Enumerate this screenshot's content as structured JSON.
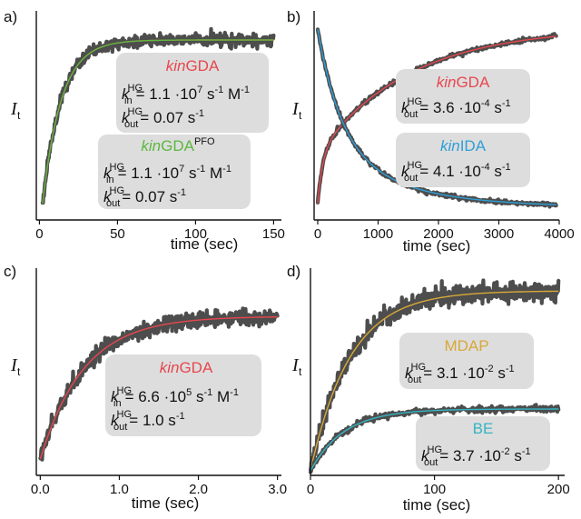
{
  "chart_data": [
    {
      "panel": "a)",
      "type": "line",
      "xlabel": "time  (sec)",
      "ylabel": "I",
      "ylabel_sub": "t",
      "xlim": [
        -2,
        155
      ],
      "xticks": [
        "0",
        "50",
        "100",
        "150"
      ],
      "xtick_values": [
        0,
        50,
        100,
        150
      ],
      "series": [
        {
          "name": "kinGDA",
          "k_in": "1.1 ·10⁷ s⁻¹ M⁻¹",
          "k_out": "0.07 s⁻¹",
          "color": "#e8474e"
        },
        {
          "name": "kinGDA^PFO",
          "k_in": "1.1 ·10⁷ s⁻¹ M⁻¹",
          "k_out": "0.07 s⁻¹",
          "color": "#5cb83f"
        }
      ],
      "model": {
        "x0": 1,
        "tau": 12,
        "ymax": 1.0,
        "xend": 150
      }
    },
    {
      "panel": "b)",
      "type": "line",
      "xlabel": "time (sec)",
      "ylabel": "I",
      "ylabel_sub": "t",
      "xlim": [
        -60,
        4000
      ],
      "xticks": [
        "0",
        "1000",
        "2000",
        "3000",
        "4000"
      ],
      "xtick_values": [
        0,
        1000,
        2000,
        3000,
        4000
      ],
      "series": [
        {
          "name": "kinGDA",
          "k_out": "3.6 ·10⁻⁴ s⁻¹",
          "color": "#e8474e",
          "trend": "rising"
        },
        {
          "name": "kinIDA",
          "k_out": "4.1 ·10⁻⁴ s⁻¹",
          "color": "#2f9fd8",
          "trend": "decaying"
        }
      ]
    },
    {
      "panel": "c)",
      "type": "line",
      "xlabel": "time (sec)",
      "ylabel": "I",
      "ylabel_sub": "t",
      "xlim": [
        -0.05,
        3.05
      ],
      "xticks": [
        "0.0",
        "1.0",
        "2.0",
        "3.0"
      ],
      "xtick_values": [
        0,
        1,
        2,
        3
      ],
      "series": [
        {
          "name": "kinGDA",
          "k_in": "6.6 ·10⁵ s⁻¹ M⁻¹",
          "k_out": "1.0 s⁻¹",
          "color": "#e8474e"
        }
      ]
    },
    {
      "panel": "d)",
      "type": "line",
      "xlabel": "time (sec)",
      "ylabel": "I",
      "ylabel_sub": "t",
      "xlim": [
        0,
        205
      ],
      "xticks": [
        "0",
        "100",
        "200"
      ],
      "xtick_values": [
        0,
        100,
        200
      ],
      "series": [
        {
          "name": "MDAP",
          "k_out": "3.1 ·10⁻² s⁻¹",
          "color": "#d8a838"
        },
        {
          "name": "BE",
          "k_out": "3.7 ·10⁻² s⁻¹",
          "color": "#35b5c4"
        }
      ]
    }
  ],
  "labels": {
    "a": "a)",
    "b": "b)",
    "c": "c)",
    "d": "d)",
    "hg": "HG",
    "k": "k",
    "in": "in",
    "out": "out",
    "pfo": "PFO",
    "kin_prefix": "kin",
    "gda": "GDA",
    "ida": "IDA",
    "mdap": "MDAP",
    "be": "BE",
    "a_box1_kin": "= 1.1 ·10",
    "a_box1_kin_exp": "7",
    "a_box1_kin_unit": " s",
    "a_box1_kin_unit_exp": "-1",
    "a_box1_kin_m": " M",
    "a_box1_kin_m_exp": "-1",
    "a_box1_kout": "= 0.07 s",
    "a_box1_kout_exp": "-1",
    "b_gda_kout": "= 3.6 ·10",
    "b_gda_kout_exp": "-4",
    "b_gda_unit": " s",
    "b_gda_unit_exp": "-1",
    "b_ida_kout": "= 4.1 ·10",
    "b_ida_kout_exp": "-4",
    "c_kin": "= 6.6 ·10",
    "c_kin_exp": "5",
    "c_kout": "= 1.0 s",
    "c_kout_exp": "-1",
    "d_mdap_kout": "= 3.1 ·10",
    "d_mdap_exp": "-2",
    "d_be_kout": "= 3.7 ·10",
    "d_be_exp": "-2"
  },
  "colors": {
    "data": "#4d4d4d",
    "box": "#dddddd",
    "red": "#e8474e",
    "green": "#5cb83f",
    "blue": "#2f9fd8",
    "gold": "#d8a838",
    "teal": "#35b5c4"
  }
}
